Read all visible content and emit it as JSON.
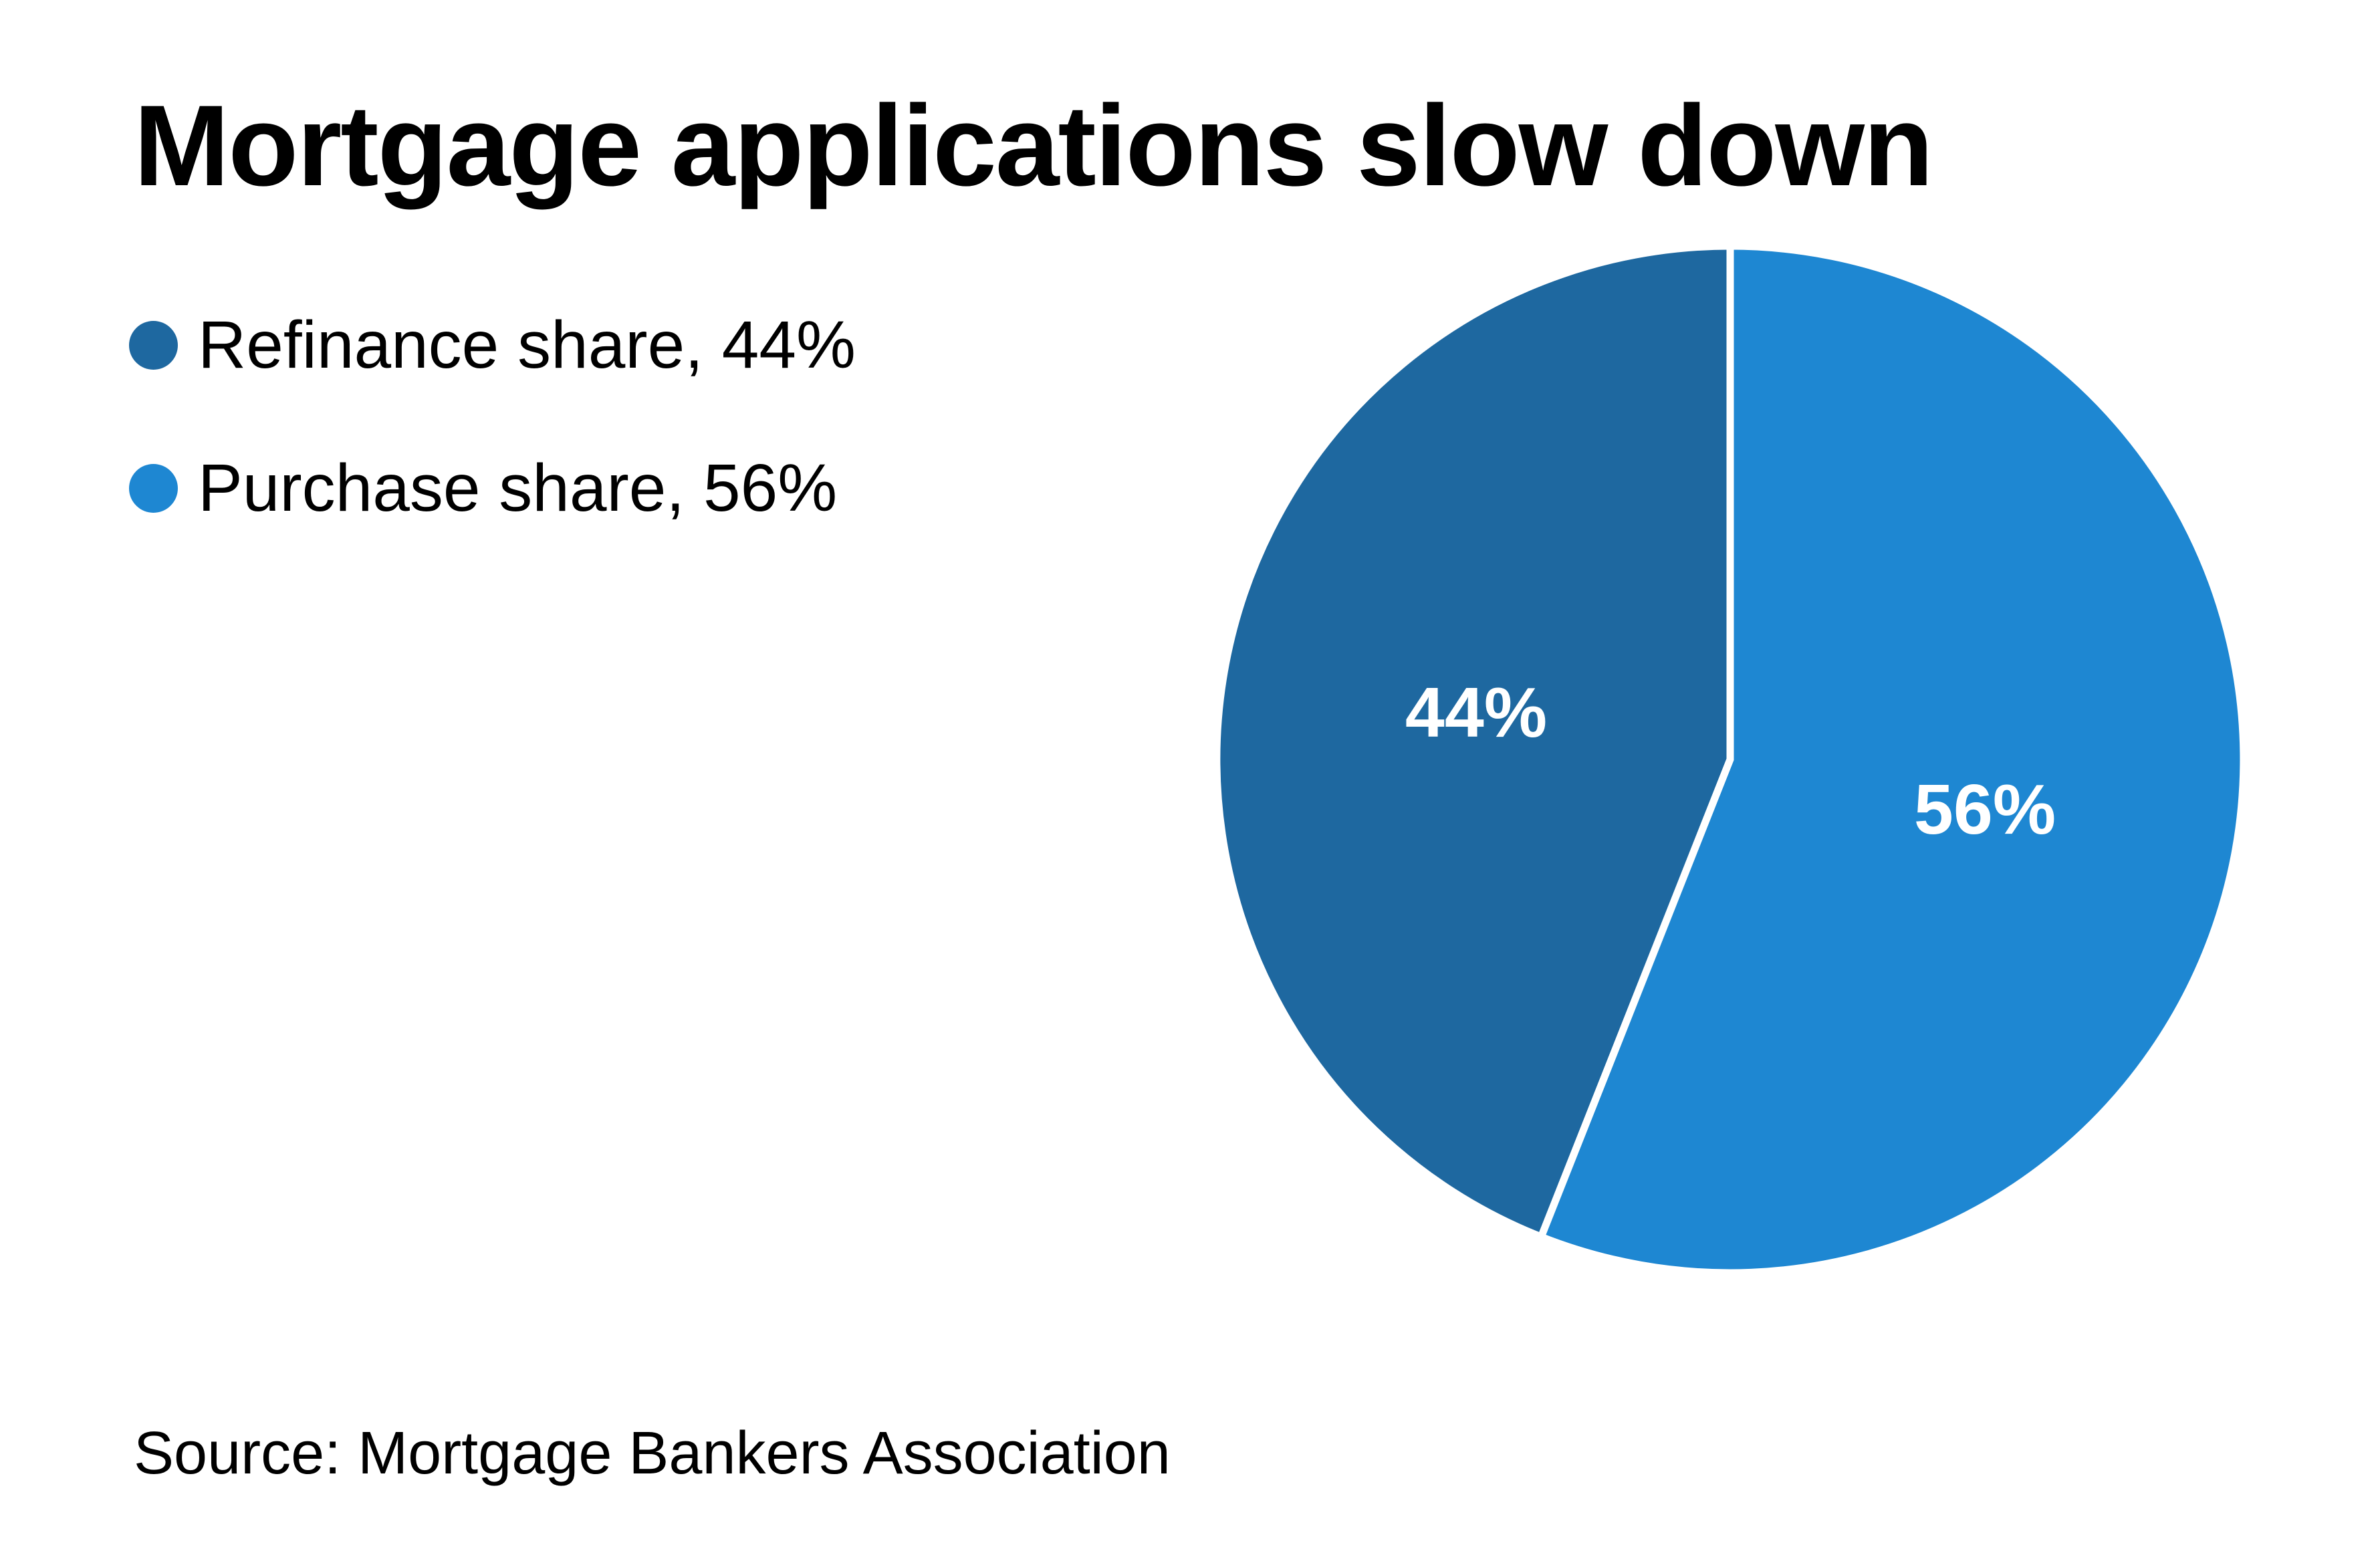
{
  "page": {
    "background_color": "#ffffff",
    "text_color": "#000000"
  },
  "title": {
    "text": "Mortgage applications slow down"
  },
  "legend": {
    "position": "left",
    "items": [
      {
        "label": "Refinance share, 44%",
        "color": "#1e68a0"
      },
      {
        "label": "Purchase share, 56%",
        "color": "#1e87d2"
      }
    ]
  },
  "chart_data": {
    "type": "pie",
    "title": "Mortgage applications slow down",
    "units": "%",
    "series": [
      {
        "name": "Refinance share",
        "value": 44,
        "color": "#1e68a0",
        "label": "44%"
      },
      {
        "name": "Purchase share",
        "value": 56,
        "color": "#1e87d2",
        "label": "56%"
      }
    ],
    "start_angle_deg": 0,
    "direction_from_top": "counterclockwise",
    "divider_color": "#ffffff",
    "legend_position": "left",
    "label_color": "#ffffff"
  },
  "source": {
    "text": "Source: Mortgage Bankers Association"
  }
}
